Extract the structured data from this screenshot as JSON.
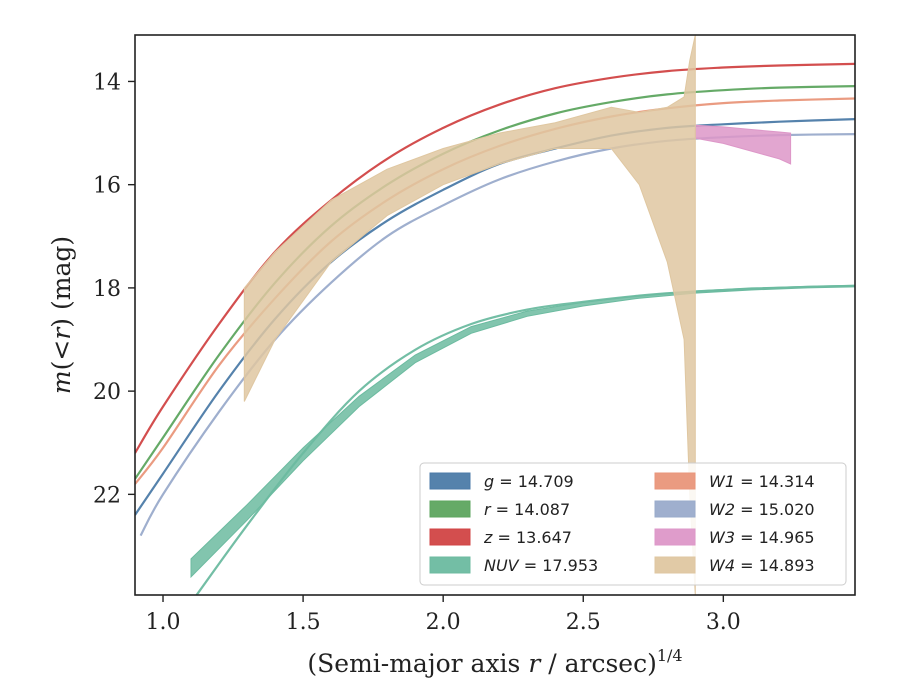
{
  "chart_data": {
    "type": "line",
    "title": "",
    "xlabel": "(Semi-major axis r / arcsec)^{1/4}",
    "xlabel_parts": {
      "prefix": "(Semi-major axis ",
      "var": "r",
      "mid": " / arcsec)",
      "exp": "1/4"
    },
    "ylabel": "m(<r) (mag)",
    "ylabel_parts": {
      "var": "m",
      "open": "(",
      "lt": "<",
      "r": "r",
      "close": ")",
      "unit": " (mag)"
    },
    "xlim": [
      0.9,
      3.47
    ],
    "ylim": [
      23.95,
      13.1
    ],
    "y_inverted": true,
    "xticks": [
      1.0,
      1.5,
      2.0,
      2.5,
      3.0
    ],
    "xtick_labels": [
      "1.0",
      "1.5",
      "2.0",
      "2.5",
      "3.0"
    ],
    "yticks": [
      14,
      16,
      18,
      20,
      22
    ],
    "ytick_labels": [
      "14",
      "16",
      "18",
      "20",
      "22"
    ],
    "grid": false,
    "legend_placement": "lower-right",
    "series": [
      {
        "name": "g = 14.709",
        "band": "g",
        "total": "14.709",
        "color": "#4c7ba8",
        "kind": "line",
        "x": [
          0.9,
          1.0,
          1.2,
          1.4,
          1.6,
          1.8,
          2.0,
          2.2,
          2.4,
          2.6,
          2.8,
          3.0,
          3.2,
          3.47
        ],
        "y": [
          22.4,
          21.6,
          20.0,
          18.6,
          17.5,
          16.7,
          16.1,
          15.6,
          15.3,
          15.05,
          14.9,
          14.83,
          14.78,
          14.73
        ]
      },
      {
        "name": "r = 14.087",
        "band": "r",
        "total": "14.087",
        "color": "#5da55f",
        "kind": "line",
        "x": [
          0.9,
          1.0,
          1.2,
          1.4,
          1.6,
          1.8,
          2.0,
          2.2,
          2.4,
          2.6,
          2.8,
          3.0,
          3.2,
          3.47
        ],
        "y": [
          21.7,
          20.9,
          19.3,
          17.9,
          16.8,
          16.0,
          15.4,
          14.95,
          14.62,
          14.4,
          14.25,
          14.17,
          14.12,
          14.09
        ]
      },
      {
        "name": "z = 13.647",
        "band": "z",
        "total": "13.647",
        "color": "#d14445",
        "kind": "line",
        "x": [
          0.9,
          1.0,
          1.2,
          1.4,
          1.6,
          1.8,
          2.0,
          2.2,
          2.4,
          2.6,
          2.8,
          3.0,
          3.2,
          3.47
        ],
        "y": [
          21.2,
          20.3,
          18.7,
          17.3,
          16.3,
          15.5,
          14.9,
          14.45,
          14.13,
          13.93,
          13.8,
          13.73,
          13.69,
          13.66
        ]
      },
      {
        "name": "NUV = 17.953",
        "band": "NUV",
        "total": "17.953",
        "color": "#6cbba0",
        "kind": "band",
        "x": [
          1.1,
          1.3,
          1.5,
          1.7,
          1.9,
          2.1,
          2.3,
          2.5,
          2.7,
          2.9,
          3.1,
          3.3,
          3.47
        ],
        "y_low": [
          23.25,
          22.2,
          21.1,
          20.1,
          19.3,
          18.75,
          18.45,
          18.28,
          18.15,
          18.06,
          18.0,
          17.97,
          17.95
        ],
        "y_high": [
          23.6,
          22.5,
          21.35,
          20.3,
          19.45,
          18.88,
          18.55,
          18.35,
          18.2,
          18.1,
          18.04,
          18.0,
          17.98
        ]
      },
      {
        "name": "NUV profile",
        "band": "NUV",
        "color": "#6cbba0",
        "kind": "line",
        "legend": false,
        "x": [
          1.12,
          1.3,
          1.5,
          1.7,
          1.9,
          2.1,
          2.3,
          2.5,
          2.7,
          2.9,
          3.1,
          3.3,
          3.47
        ],
        "y": [
          23.95,
          22.6,
          21.2,
          20.0,
          19.2,
          18.7,
          18.42,
          18.27,
          18.15,
          18.07,
          18.02,
          17.98,
          17.96
        ]
      },
      {
        "name": "W1 = 14.314",
        "band": "W1",
        "total": "14.314",
        "color": "#e9967a",
        "kind": "line",
        "x": [
          0.9,
          1.0,
          1.2,
          1.4,
          1.6,
          1.8,
          2.0,
          2.2,
          2.4,
          2.6,
          2.8,
          3.0,
          3.2,
          3.47
        ],
        "y": [
          21.8,
          21.1,
          19.5,
          18.2,
          17.1,
          16.3,
          15.7,
          15.25,
          14.92,
          14.68,
          14.52,
          14.42,
          14.37,
          14.33
        ]
      },
      {
        "name": "W2 = 15.020",
        "band": "W2",
        "total": "15.020",
        "color": "#9aabcb",
        "kind": "line",
        "x": [
          0.92,
          1.0,
          1.2,
          1.4,
          1.6,
          1.8,
          2.0,
          2.2,
          2.4,
          2.6,
          2.8,
          3.0,
          3.2,
          3.47
        ],
        "y": [
          22.8,
          22.0,
          20.4,
          19.0,
          17.9,
          17.0,
          16.4,
          15.9,
          15.55,
          15.3,
          15.15,
          15.08,
          15.04,
          15.02
        ]
      },
      {
        "name": "W3 = 14.965",
        "band": "W3",
        "total": "14.965",
        "color": "#dd97c8",
        "kind": "band",
        "x": [
          2.9,
          3.0,
          3.1,
          3.2,
          3.24
        ],
        "y_low": [
          14.85,
          14.88,
          14.93,
          14.98,
          15.0
        ],
        "y_high": [
          15.1,
          15.2,
          15.35,
          15.5,
          15.6
        ]
      },
      {
        "name": "W4 = 14.893",
        "band": "W4",
        "total": "14.893",
        "color": "#dfc7a1",
        "kind": "band",
        "x": [
          1.29,
          1.4,
          1.6,
          1.8,
          2.0,
          2.2,
          2.4,
          2.6,
          2.7,
          2.8,
          2.86,
          2.88,
          2.9
        ],
        "y_low": [
          18.0,
          17.3,
          16.3,
          15.7,
          15.3,
          15.0,
          14.8,
          14.5,
          14.6,
          14.5,
          14.3,
          13.6,
          13.1
        ],
        "y_high": [
          20.2,
          19.0,
          17.5,
          16.6,
          16.0,
          15.6,
          15.3,
          15.3,
          16.0,
          17.5,
          19.0,
          22.0,
          23.95
        ]
      }
    ]
  }
}
